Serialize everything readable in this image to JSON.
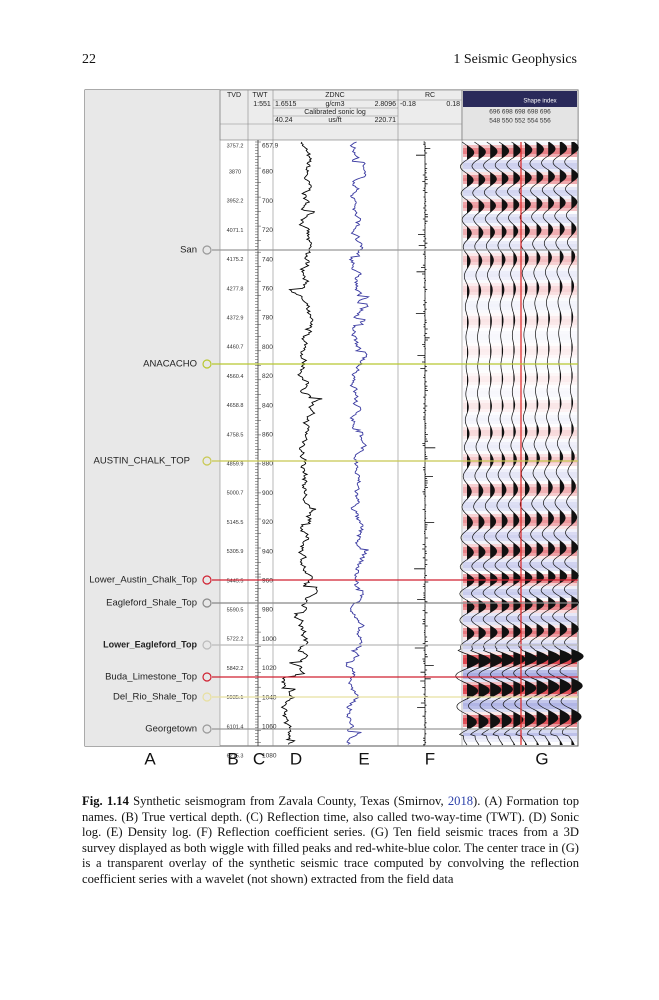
{
  "header": {
    "page_number": "22",
    "running_title": "1 Seismic Geophysics"
  },
  "figure": {
    "column_headers": {
      "tvd": "TVD",
      "twt": "TWT",
      "scale": "1:551",
      "zdnc": "ZDNC",
      "zdnc_min": "1.6515",
      "zdnc_unit": "g/cm3",
      "zdnc_max": "2.8096",
      "sonic": "Calibrated sonic log",
      "sonic_min": "40.24",
      "sonic_unit": "us/ft",
      "sonic_max": "220.71",
      "rc": "RC",
      "rc_min": "-0.18",
      "rc_max": "0.18",
      "seismic": "Shape index",
      "trace_row1": "696   698   698   698   696",
      "trace_row2": "548   550   552   554   556"
    },
    "formations": [
      "San",
      "ANACACHO",
      "AUSTIN_CHALK_TOP",
      "Lower_Austin_Chalk_Top",
      "Eagleford_Shale_Top",
      "Lower_Eagleford_Top",
      "Buda_Limestone_Top",
      "Del_Rio_Shale_Top",
      "Georgetown"
    ],
    "tvd_labels": [
      "3757.2",
      "3870",
      "3952.2",
      "4071.1",
      "4175.2",
      "4277.8",
      "4372.9",
      "4460.7",
      "4560.4",
      "4658.8",
      "4758.5",
      "4859.9",
      "5000.7",
      "5145.5",
      "5305.9",
      "5445.5",
      "5590.5",
      "5722.2",
      "5842.2",
      "5935.1",
      "6101.4",
      "6215.3"
    ],
    "twt_labels": [
      "657.9",
      "680",
      "700",
      "720",
      "740",
      "760",
      "780",
      "800",
      "820",
      "840",
      "860",
      "880",
      "900",
      "920",
      "940",
      "960",
      "980",
      "1000",
      "1020",
      "1040",
      "1060",
      "1080"
    ],
    "panel_letters": [
      "A",
      "B",
      "C",
      "D",
      "E",
      "F",
      "G"
    ]
  },
  "caption": {
    "label": "Fig. 1.14",
    "text_start": "Synthetic seismogram from Zavala County, Texas (Smirnov, ",
    "citation": "2018",
    "text_end": "). (A) Formation top names. (B) True vertical depth. (C) Reflection time, also called two-way-time (TWT). (D) Sonic log. (E) Density log. (F) Reflection coefficient series. (G) Ten field seismic traces from a 3D survey displayed as both wiggle with filled peaks and red-white-blue color. The center trace in (G) is a transparent overlay of the synthetic seismic trace computed by convolving the reflection coefficient series with a wavelet (not shown) extracted from the field data"
  }
}
